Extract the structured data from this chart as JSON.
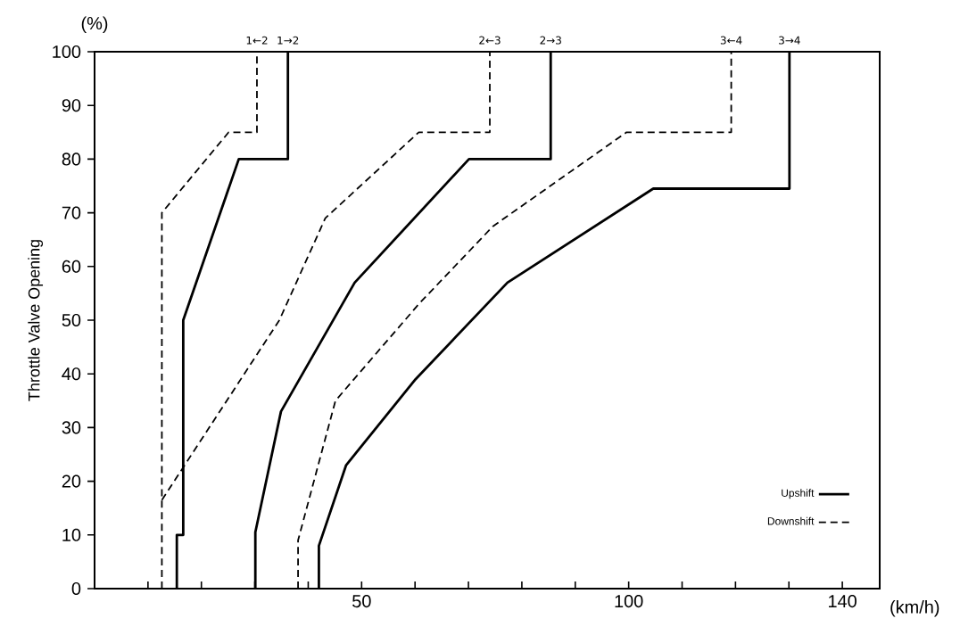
{
  "chart_data": {
    "type": "line",
    "ylabel": "Throttle Valve Opening",
    "xlabel": "(km/h)",
    "xlim": [
      0,
      147
    ],
    "ylim": [
      0,
      100
    ],
    "xticks": [
      {
        "value": 10,
        "label": null
      },
      {
        "value": 20,
        "label": null
      },
      {
        "value": 30,
        "label": null
      },
      {
        "value": 40,
        "label": null
      },
      50,
      {
        "value": 60,
        "label": null
      },
      {
        "value": 70,
        "label": null
      },
      {
        "value": 80,
        "label": null
      },
      {
        "value": 90,
        "label": null
      },
      100,
      {
        "value": 110,
        "label": null
      },
      {
        "value": 120,
        "label": null
      },
      {
        "value": 130,
        "label": null
      },
      140
    ],
    "yticks": [
      0,
      10,
      20,
      30,
      40,
      50,
      60,
      70,
      80,
      90,
      100
    ],
    "legend": "bottom right",
    "grid": false,
    "series": [
      {
        "name": "Upshift",
        "color": "#000000",
        "line_style": "solid",
        "x": [
          15.4,
          15.4,
          16.6,
          16.6,
          27,
          36.2,
          36.2,
          null,
          30.1,
          30.1,
          34.9,
          48.7,
          70.1,
          85.4,
          85.4,
          null,
          42,
          42,
          47.1,
          60.1,
          77.3,
          104.6,
          130.1,
          130.1
        ],
        "values": [
          0,
          10,
          10,
          50,
          80,
          80,
          100,
          null,
          0,
          10.5,
          33,
          57,
          80,
          80,
          100,
          null,
          0,
          8,
          23,
          39,
          57,
          74.5,
          74.5,
          100
        ]
      },
      {
        "name": "Downshift",
        "color": "#000000",
        "line_style": "dashed",
        "x": [
          12.6,
          12.6,
          25.1,
          30.4,
          30.4,
          null,
          12.6,
          34.6,
          43.2,
          60.7,
          74,
          74,
          null,
          38.1,
          38.1,
          45.1,
          60.7,
          74.6,
          99.6,
          119.2,
          119.2
        ],
        "values": [
          0,
          70,
          85,
          85,
          100,
          null,
          16.5,
          50,
          69,
          85,
          85,
          100,
          null,
          0,
          9,
          35,
          53,
          67.5,
          85,
          85,
          100
        ]
      }
    ],
    "annotations": [
      {
        "text": "1←2",
        "x": 30.4,
        "y": 100
      },
      {
        "text": "1→2",
        "x": 36.2,
        "y": 100
      },
      {
        "text": "2←3",
        "x": 74,
        "y": 100
      },
      {
        "text": "2→3",
        "x": 85.4,
        "y": 100
      },
      {
        "text": "3←4",
        "x": 119.2,
        "y": 100
      },
      {
        "text": "3→4",
        "x": 130.1,
        "y": 100
      },
      "(%)"
    ]
  }
}
